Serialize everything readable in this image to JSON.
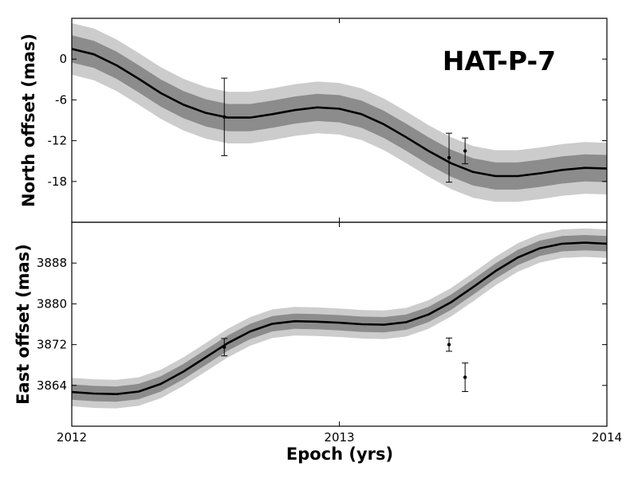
{
  "chart_data": [
    {
      "type": "line",
      "panel": "top",
      "ylabel": "North offset (mas)",
      "annotation": "HAT-P-7",
      "xlim": [
        2012,
        2014
      ],
      "ylim": [
        -24,
        6
      ],
      "yticks": [
        0,
        -6,
        -12,
        -18
      ],
      "ytick_labels": [
        "0",
        "-6",
        "-12",
        "-18"
      ],
      "x": [
        2012.0,
        2012.083,
        2012.167,
        2012.25,
        2012.333,
        2012.417,
        2012.5,
        2012.583,
        2012.667,
        2012.75,
        2012.833,
        2012.917,
        2013.0,
        2013.083,
        2013.167,
        2013.25,
        2013.333,
        2013.417,
        2013.5,
        2013.583,
        2013.667,
        2013.75,
        2013.833,
        2013.917,
        2014.0
      ],
      "series": [
        {
          "role": "model",
          "color": "#000000",
          "values": [
            1.5,
            0.7,
            -0.9,
            -2.9,
            -5.0,
            -6.7,
            -7.9,
            -8.6,
            -8.6,
            -8.1,
            -7.5,
            -7.1,
            -7.3,
            -8.1,
            -9.6,
            -11.5,
            -13.5,
            -15.3,
            -16.6,
            -17.2,
            -17.2,
            -16.8,
            -16.3,
            -16.0,
            -16.1
          ]
        }
      ],
      "band_1sigma": {
        "color": "#8c8c8c",
        "upper": [
          3.5,
          2.7,
          1.1,
          -0.9,
          -3.0,
          -4.7,
          -5.9,
          -6.6,
          -6.6,
          -6.1,
          -5.5,
          -5.1,
          -5.3,
          -6.1,
          -7.6,
          -9.5,
          -11.5,
          -13.3,
          -14.6,
          -15.2,
          -15.2,
          -14.8,
          -14.3,
          -14.0,
          -14.1
        ],
        "lower": [
          -0.5,
          -1.3,
          -2.9,
          -4.9,
          -7.0,
          -8.7,
          -9.9,
          -10.6,
          -10.6,
          -10.1,
          -9.5,
          -9.1,
          -9.3,
          -10.1,
          -11.6,
          -13.5,
          -15.5,
          -17.3,
          -18.6,
          -19.2,
          -19.2,
          -18.8,
          -18.3,
          -18.0,
          -18.1
        ]
      },
      "band_2sigma": {
        "color": "#cccccc",
        "upper": [
          5.3,
          4.5,
          2.9,
          0.9,
          -1.2,
          -2.9,
          -4.1,
          -4.8,
          -4.8,
          -4.3,
          -3.7,
          -3.3,
          -3.5,
          -4.3,
          -5.8,
          -7.7,
          -9.7,
          -11.5,
          -12.8,
          -13.4,
          -13.4,
          -13.0,
          -12.5,
          -12.2,
          -12.3
        ],
        "lower": [
          -2.3,
          -3.1,
          -4.7,
          -6.7,
          -8.8,
          -10.5,
          -11.7,
          -12.4,
          -12.4,
          -11.9,
          -11.3,
          -10.9,
          -11.1,
          -11.9,
          -13.4,
          -15.3,
          -17.3,
          -19.1,
          -20.4,
          -21.0,
          -21.0,
          -20.6,
          -20.1,
          -19.8,
          -19.9
        ]
      },
      "points": [
        {
          "x": 2012.57,
          "y": -8.5,
          "err": 5.7
        },
        {
          "x": 2013.41,
          "y": -14.5,
          "err": 3.6
        },
        {
          "x": 2013.47,
          "y": -13.5,
          "err": 1.9
        }
      ]
    },
    {
      "type": "line",
      "panel": "bottom",
      "ylabel": "East offset (mas)",
      "xlabel": "Epoch (yrs)",
      "xlim": [
        2012,
        2014
      ],
      "ylim": [
        3856,
        3896
      ],
      "yticks": [
        3864,
        3872,
        3880,
        3888
      ],
      "ytick_labels": [
        "3864",
        "3872",
        "3880",
        "3888"
      ],
      "xticks": [
        2012,
        2013,
        2014
      ],
      "xtick_labels": [
        "2012",
        "2013",
        "2014"
      ],
      "x": [
        2012.0,
        2012.083,
        2012.167,
        2012.25,
        2012.333,
        2012.417,
        2012.5,
        2012.583,
        2012.667,
        2012.75,
        2012.833,
        2012.917,
        2013.0,
        2013.083,
        2013.167,
        2013.25,
        2013.333,
        2013.417,
        2013.5,
        2013.583,
        2013.667,
        2013.75,
        2013.833,
        2013.917,
        2014.0
      ],
      "series": [
        {
          "role": "model",
          "color": "#000000",
          "values": [
            3862.7,
            3862.4,
            3862.3,
            3862.8,
            3864.3,
            3866.7,
            3869.5,
            3872.3,
            3874.6,
            3876.1,
            3876.6,
            3876.5,
            3876.3,
            3876.0,
            3875.9,
            3876.4,
            3877.9,
            3880.3,
            3883.3,
            3886.4,
            3889.1,
            3890.9,
            3891.8,
            3892.0,
            3891.8
          ]
        }
      ],
      "band_1sigma": {
        "color": "#8c8c8c",
        "upper": [
          3864.2,
          3863.9,
          3863.8,
          3864.3,
          3865.8,
          3868.2,
          3871.0,
          3873.8,
          3876.1,
          3877.6,
          3878.1,
          3878.0,
          3877.8,
          3877.5,
          3877.4,
          3877.9,
          3879.4,
          3881.8,
          3884.8,
          3887.9,
          3890.6,
          3892.4,
          3893.3,
          3893.5,
          3893.3
        ],
        "lower": [
          3861.2,
          3860.9,
          3860.8,
          3861.3,
          3862.8,
          3865.2,
          3868.0,
          3870.8,
          3873.1,
          3874.6,
          3875.1,
          3875.0,
          3874.8,
          3874.5,
          3874.4,
          3874.9,
          3876.4,
          3878.8,
          3881.8,
          3884.9,
          3887.6,
          3889.4,
          3890.3,
          3890.5,
          3890.3
        ]
      },
      "band_2sigma": {
        "color": "#cccccc",
        "upper": [
          3865.5,
          3865.2,
          3865.1,
          3865.6,
          3867.1,
          3869.5,
          3872.3,
          3875.1,
          3877.4,
          3878.9,
          3879.4,
          3879.3,
          3879.1,
          3878.8,
          3878.7,
          3879.2,
          3880.7,
          3883.1,
          3886.1,
          3889.2,
          3891.9,
          3893.7,
          3894.6,
          3894.8,
          3894.6
        ],
        "lower": [
          3859.9,
          3859.6,
          3859.5,
          3860.0,
          3861.5,
          3863.9,
          3866.7,
          3869.5,
          3871.8,
          3873.3,
          3873.8,
          3873.7,
          3873.5,
          3873.2,
          3873.1,
          3873.6,
          3875.1,
          3877.5,
          3880.5,
          3883.6,
          3886.3,
          3888.1,
          3889.0,
          3889.2,
          3889.0
        ]
      },
      "points": [
        {
          "x": 2012.57,
          "y": 3871.5,
          "err": 1.7
        },
        {
          "x": 2013.41,
          "y": 3872.0,
          "err": 1.3
        },
        {
          "x": 2013.47,
          "y": 3865.6,
          "err": 2.8
        }
      ]
    }
  ]
}
